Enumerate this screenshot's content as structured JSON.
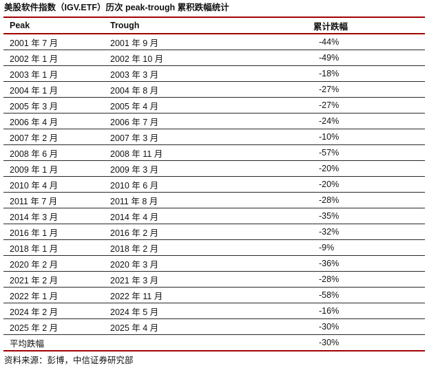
{
  "title": "美股软件指数（IGV.ETF）历次 peak-trough 累积跌幅统计",
  "table": {
    "columns": [
      "Peak",
      "Trough",
      "累计跌幅"
    ],
    "rows": [
      [
        "2001 年 7 月",
        "2001 年 9 月",
        "-44%"
      ],
      [
        "2002 年 1 月",
        "2002 年 10 月",
        "-49%"
      ],
      [
        "2003 年 1 月",
        "2003 年 3 月",
        "-18%"
      ],
      [
        "2004 年 1 月",
        "2004 年 8 月",
        "-27%"
      ],
      [
        "2005 年 3 月",
        "2005 年 4 月",
        "-27%"
      ],
      [
        "2006 年 4 月",
        "2006 年 7 月",
        "-24%"
      ],
      [
        "2007 年 2 月",
        "2007 年 3 月",
        "-10%"
      ],
      [
        "2008 年 6 月",
        "2008 年 11 月",
        "-57%"
      ],
      [
        "2009 年 1 月",
        "2009 年 3 月",
        "-20%"
      ],
      [
        "2010 年 4 月",
        "2010 年 6 月",
        "-20%"
      ],
      [
        "2011 年 7 月",
        "2011 年 8 月",
        "-28%"
      ],
      [
        "2014 年 3 月",
        "2014 年 4 月",
        "-35%"
      ],
      [
        "2016 年 1 月",
        "2016 年 2 月",
        "-32%"
      ],
      [
        "2018 年 1 月",
        "2018 年 2 月",
        "-9%"
      ],
      [
        "2020 年 2 月",
        "2020 年 3 月",
        "-36%"
      ],
      [
        "2021 年 2 月",
        "2021 年 3 月",
        "-28%"
      ],
      [
        "2022 年 1 月",
        "2022 年 11 月",
        "-58%"
      ],
      [
        "2024 年 2 月",
        "2024 年 5 月",
        "-16%"
      ],
      [
        "2025 年 2 月",
        "2025 年 4 月",
        "-30%"
      ]
    ],
    "summary_row": {
      "label": "平均跌幅",
      "trough": "",
      "drawdown": "-30%"
    }
  },
  "footer": {
    "source": "资料来源：彭博，中信证券研究部"
  },
  "colors": {
    "accent_red": "#a00000",
    "row_divider": "#262626",
    "text": "#111111"
  }
}
